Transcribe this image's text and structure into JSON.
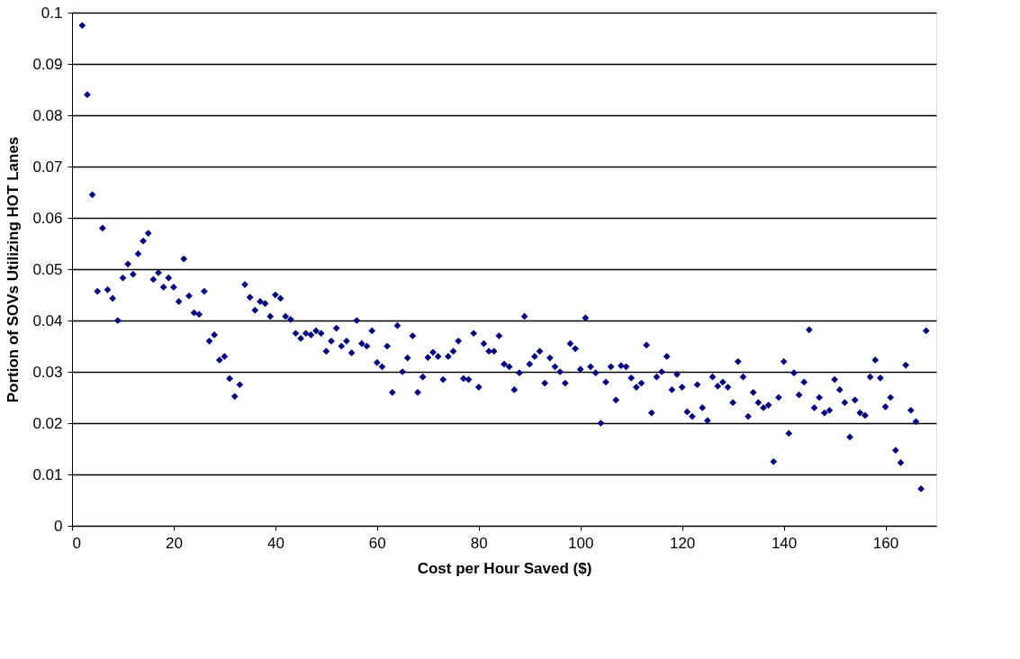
{
  "chart_data": {
    "type": "scatter",
    "xlabel": "Cost per Hour Saved ($)",
    "ylabel": "Portion of SOVs Utilizing HOT Lanes",
    "xlim": [
      0,
      170
    ],
    "xticks": [
      0,
      20,
      40,
      60,
      80,
      100,
      120,
      140,
      160
    ],
    "ylim": [
      0,
      0.1
    ],
    "yticks": [
      0,
      0.01,
      0.02,
      0.03,
      0.04,
      0.05,
      0.06,
      0.07,
      0.08,
      0.09,
      0.1
    ],
    "grid": "y",
    "marker": "diamond",
    "legend": false,
    "x": [
      2,
      3,
      4,
      5,
      6,
      7,
      8,
      9,
      10,
      11,
      12,
      13,
      14,
      15,
      16,
      17,
      18,
      19,
      20,
      21,
      22,
      23,
      24,
      25,
      26,
      27,
      28,
      29,
      30,
      31,
      32,
      33,
      34,
      35,
      36,
      37,
      38,
      39,
      40,
      41,
      42,
      43,
      44,
      45,
      46,
      47,
      48,
      49,
      50,
      51,
      52,
      53,
      54,
      55,
      56,
      57,
      58,
      59,
      60,
      61,
      62,
      63,
      64,
      65,
      66,
      67,
      68,
      69,
      70,
      71,
      72,
      73,
      74,
      75,
      76,
      77,
      78,
      79,
      80,
      81,
      82,
      83,
      84,
      85,
      86,
      87,
      88,
      89,
      90,
      91,
      92,
      93,
      94,
      95,
      96,
      97,
      98,
      99,
      100,
      101,
      102,
      103,
      104,
      105,
      106,
      107,
      108,
      109,
      110,
      111,
      112,
      113,
      114,
      115,
      116,
      117,
      118,
      119,
      120,
      121,
      122,
      123,
      124,
      125,
      126,
      127,
      128,
      129,
      130,
      131,
      132,
      133,
      134,
      135,
      136,
      137,
      138,
      139,
      140,
      141,
      142,
      143,
      144,
      145,
      146,
      147,
      148,
      149,
      150,
      151,
      152,
      153,
      154,
      155,
      156,
      157,
      158,
      159,
      160,
      161,
      162,
      163,
      164,
      165,
      166,
      167,
      168
    ],
    "series": [
      {
        "color": "#000080",
        "values": [
          0.0975,
          0.084,
          0.0645,
          0.0457,
          0.058,
          0.046,
          0.0443,
          0.04,
          0.0483,
          0.051,
          0.049,
          0.053,
          0.0555,
          0.057,
          0.048,
          0.0493,
          0.0465,
          0.0483,
          0.0465,
          0.0437,
          0.052,
          0.0448,
          0.0415,
          0.0412,
          0.0457,
          0.036,
          0.0372,
          0.0323,
          0.033,
          0.0287,
          0.0252,
          0.0275,
          0.047,
          0.0445,
          0.042,
          0.0437,
          0.0433,
          0.0408,
          0.045,
          0.0443,
          0.0408,
          0.0402,
          0.0375,
          0.0365,
          0.0375,
          0.0372,
          0.038,
          0.0375,
          0.034,
          0.036,
          0.0385,
          0.035,
          0.036,
          0.0337,
          0.04,
          0.0355,
          0.035,
          0.038,
          0.0318,
          0.031,
          0.035,
          0.026,
          0.039,
          0.03,
          0.0327,
          0.037,
          0.026,
          0.029,
          0.0328,
          0.0338,
          0.033,
          0.0285,
          0.033,
          0.034,
          0.036,
          0.0287,
          0.0285,
          0.0375,
          0.027,
          0.0355,
          0.034,
          0.034,
          0.037,
          0.0315,
          0.031,
          0.0265,
          0.0298,
          0.0408,
          0.0315,
          0.033,
          0.034,
          0.0278,
          0.0327,
          0.031,
          0.03,
          0.0278,
          0.0355,
          0.0345,
          0.0305,
          0.0405,
          0.031,
          0.0298,
          0.02,
          0.028,
          0.031,
          0.0245,
          0.0312,
          0.031,
          0.0288,
          0.027,
          0.0278,
          0.0352,
          0.022,
          0.029,
          0.03,
          0.033,
          0.0265,
          0.0295,
          0.027,
          0.0222,
          0.0213,
          0.0275,
          0.023,
          0.0205,
          0.029,
          0.0272,
          0.028,
          0.027,
          0.024,
          0.032,
          0.029,
          0.0213,
          0.026,
          0.024,
          0.023,
          0.0235,
          0.0125,
          0.025,
          0.032,
          0.018,
          0.0298,
          0.0255,
          0.028,
          0.0382,
          0.023,
          0.025,
          0.022,
          0.0225,
          0.0285,
          0.0265,
          0.024,
          0.0173,
          0.0245,
          0.022,
          0.0215,
          0.029,
          0.0323,
          0.0288,
          0.0232,
          0.025,
          0.0147,
          0.0123,
          0.0313,
          0.0225,
          0.0203,
          0.0072,
          0.038
        ]
      }
    ]
  }
}
